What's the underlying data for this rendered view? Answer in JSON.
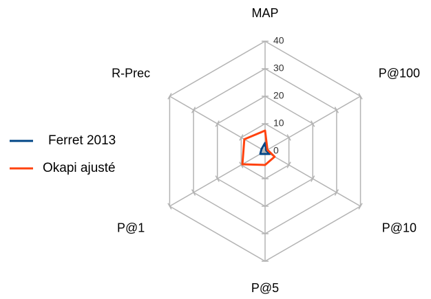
{
  "chart_data": {
    "type": "radar",
    "categories": [
      "MAP",
      "P@100",
      "P@10",
      "P@5",
      "P@1",
      "R-Prec"
    ],
    "series": [
      {
        "name": "Ferret 2013",
        "color": "#004586",
        "values": [
          3,
          0.5,
          2,
          1,
          2,
          1.5
        ]
      },
      {
        "name": "Okapi ajusté",
        "color": "#ff420e",
        "values": [
          7.5,
          1,
          4,
          5,
          9.5,
          8.7
        ]
      }
    ],
    "ylim": [
      0,
      40
    ],
    "yticks": [
      0,
      10,
      20,
      30,
      40
    ],
    "grid": true,
    "legend": "left"
  }
}
